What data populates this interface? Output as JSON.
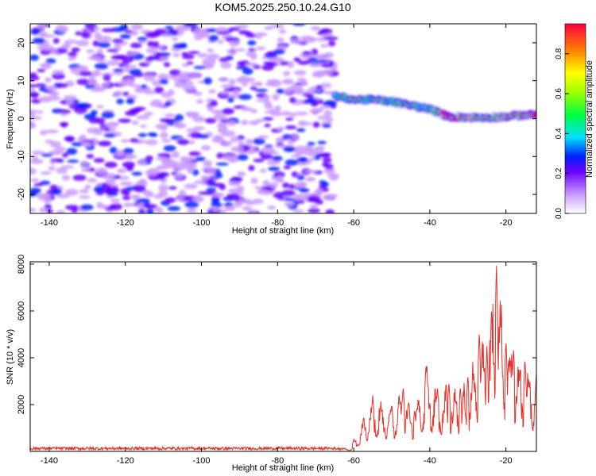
{
  "title": "KOM5.2025.250.10.24.G10",
  "chart_data": [
    {
      "type": "heatmap",
      "xlabel": "Height of straight line (km)",
      "ylabel": "Frequency (Hz)",
      "xlim": [
        -145,
        -12
      ],
      "ylim": [
        -25,
        25
      ],
      "xticks": [
        -140,
        -120,
        -100,
        -80,
        -60,
        -40,
        -20
      ],
      "yticks": [
        -20,
        -10,
        0,
        10,
        20
      ],
      "colorbar": {
        "label": "Normalized spectral amplitude",
        "range": [
          0,
          0.95
        ],
        "ticks": [
          0.0,
          0.2,
          0.4,
          0.6,
          0.8
        ],
        "tick_labels": [
          "0.0",
          "0.2",
          "0.4",
          "0.6",
          "0.8"
        ]
      },
      "noise_region": {
        "x_range": [
          -145,
          -65
        ],
        "typical_amplitude": 0.1
      },
      "signal_track": {
        "x": [
          -65,
          -60,
          -55,
          -50,
          -45,
          -40,
          -35,
          -30,
          -25,
          -20,
          -15,
          -12
        ],
        "frequency": [
          6,
          5,
          5,
          4.5,
          3.5,
          2.5,
          0.5,
          0.3,
          0.3,
          0.5,
          1.0,
          1.0
        ],
        "amplitude": [
          0.35,
          0.55,
          0.45,
          0.5,
          0.5,
          0.45,
          0.85,
          0.6,
          0.55,
          0.6,
          0.7,
          0.9
        ]
      }
    },
    {
      "type": "line",
      "xlabel": "Height of straight line (km)",
      "ylabel": "SNR (10 * v/v)",
      "xlim": [
        -145,
        -12
      ],
      "ylim": [
        0,
        8100
      ],
      "xticks": [
        -140,
        -120,
        -100,
        -80,
        -60,
        -40,
        -20
      ],
      "yticks": [
        2000,
        4000,
        6000,
        8000
      ],
      "color": "#e8302a",
      "baseline_range": [
        -145,
        -63
      ],
      "baseline_level": 150,
      "peaks": [
        {
          "x": -60,
          "y": 500
        },
        {
          "x": -55,
          "y": 2400
        },
        {
          "x": -50,
          "y": 2000
        },
        {
          "x": -47,
          "y": 2800
        },
        {
          "x": -44,
          "y": 1800
        },
        {
          "x": -41,
          "y": 3800
        },
        {
          "x": -38,
          "y": 2800
        },
        {
          "x": -35,
          "y": 3000
        },
        {
          "x": -32,
          "y": 2800
        },
        {
          "x": -30,
          "y": 3300
        },
        {
          "x": -27,
          "y": 5200
        },
        {
          "x": -25,
          "y": 4500
        },
        {
          "x": -22.5,
          "y": 8100
        },
        {
          "x": -20,
          "y": 4800
        },
        {
          "x": -18,
          "y": 4500
        },
        {
          "x": -15,
          "y": 4000
        },
        {
          "x": -12,
          "y": 3400
        }
      ]
    }
  ]
}
